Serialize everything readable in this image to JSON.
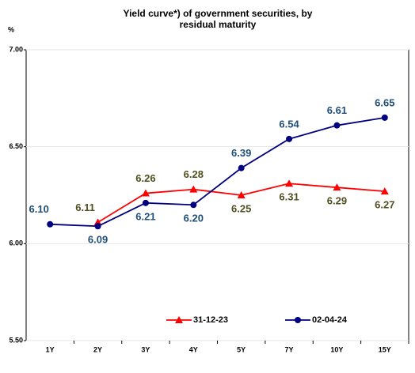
{
  "chart_data": {
    "type": "line",
    "title": "Yield curve*) of government securities, by residual maturity",
    "y_label": "%",
    "categories": [
      "1Y",
      "2Y",
      "3Y",
      "4Y",
      "5Y",
      "7Y",
      "10Y",
      "15Y"
    ],
    "series": [
      {
        "name": "31-12-23",
        "color": "#ff0000",
        "marker": "triangle",
        "label_color": "#4f4f1f",
        "values": [
          null,
          6.11,
          6.26,
          6.28,
          6.25,
          6.31,
          6.29,
          6.27
        ],
        "value_labels": [
          null,
          "6.11",
          "6.26",
          "6.28",
          "6.25",
          "6.31",
          "6.29",
          "6.27"
        ]
      },
      {
        "name": "02-04-24",
        "color": "#000080",
        "marker": "circle",
        "label_color": "#1f4e79",
        "values": [
          6.1,
          6.09,
          6.21,
          6.2,
          6.39,
          6.54,
          6.61,
          6.65
        ],
        "value_labels": [
          "6.10",
          "6.09",
          "6.21",
          "6.20",
          "6.39",
          "6.54",
          "6.61",
          "6.65"
        ]
      }
    ],
    "ylim": [
      5.5,
      7.0
    ],
    "yticks": [
      {
        "value": 5.5,
        "label": "5.50"
      },
      {
        "value": 6.0,
        "label": "6.00"
      },
      {
        "value": 6.5,
        "label": "6.50"
      },
      {
        "value": 7.0,
        "label": "7.00"
      }
    ],
    "grid": true,
    "legend": "bottom"
  }
}
